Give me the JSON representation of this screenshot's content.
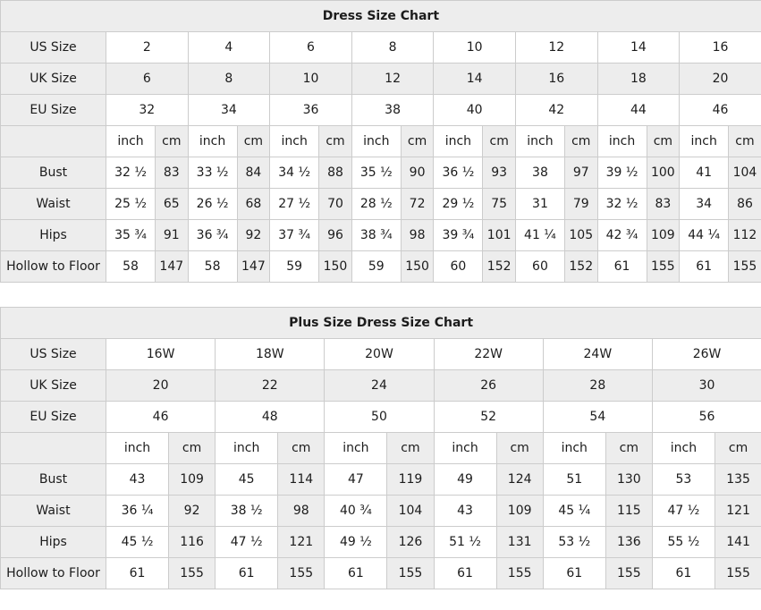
{
  "colors": {
    "shaded_cell": "#ededed",
    "border": "#cccccc",
    "text": "#1c1c1c",
    "background": "#ffffff"
  },
  "chart_data": [
    {
      "type": "table",
      "title": "Dress Size Chart",
      "units": {
        "inch": "inch",
        "cm": "cm"
      },
      "size_rows": [
        {
          "label": "US Size",
          "shaded": false,
          "values": [
            "2",
            "4",
            "6",
            "8",
            "10",
            "12",
            "14",
            "16"
          ]
        },
        {
          "label": "UK Size",
          "shaded": true,
          "values": [
            "6",
            "8",
            "10",
            "12",
            "14",
            "16",
            "18",
            "20"
          ]
        },
        {
          "label": "EU Size",
          "shaded": false,
          "values": [
            "32",
            "34",
            "36",
            "38",
            "40",
            "42",
            "44",
            "46"
          ]
        }
      ],
      "measure_rows": [
        {
          "label": "Bust",
          "pairs": [
            [
              "32 ½",
              "83"
            ],
            [
              "33 ½",
              "84"
            ],
            [
              "34 ½",
              "88"
            ],
            [
              "35 ½",
              "90"
            ],
            [
              "36 ½",
              "93"
            ],
            [
              "38",
              "97"
            ],
            [
              "39 ½",
              "100"
            ],
            [
              "41",
              "104"
            ]
          ]
        },
        {
          "label": "Waist",
          "pairs": [
            [
              "25 ½",
              "65"
            ],
            [
              "26 ½",
              "68"
            ],
            [
              "27 ½",
              "70"
            ],
            [
              "28 ½",
              "72"
            ],
            [
              "29 ½",
              "75"
            ],
            [
              "31",
              "79"
            ],
            [
              "32 ½",
              "83"
            ],
            [
              "34",
              "86"
            ]
          ]
        },
        {
          "label": "Hips",
          "pairs": [
            [
              "35 ¾",
              "91"
            ],
            [
              "36 ¾",
              "92"
            ],
            [
              "37 ¾",
              "96"
            ],
            [
              "38 ¾",
              "98"
            ],
            [
              "39 ¾",
              "101"
            ],
            [
              "41 ¼",
              "105"
            ],
            [
              "42 ¾",
              "109"
            ],
            [
              "44 ¼",
              "112"
            ]
          ]
        },
        {
          "label": "Hollow to Floor",
          "pairs": [
            [
              "58",
              "147"
            ],
            [
              "58",
              "147"
            ],
            [
              "59",
              "150"
            ],
            [
              "59",
              "150"
            ],
            [
              "60",
              "152"
            ],
            [
              "60",
              "152"
            ],
            [
              "61",
              "155"
            ],
            [
              "61",
              "155"
            ]
          ]
        }
      ]
    },
    {
      "type": "table",
      "title": "Plus Size Dress Size Chart",
      "units": {
        "inch": "inch",
        "cm": "cm"
      },
      "size_rows": [
        {
          "label": "US Size",
          "shaded": false,
          "values": [
            "16W",
            "18W",
            "20W",
            "22W",
            "24W",
            "26W"
          ]
        },
        {
          "label": "UK Size",
          "shaded": true,
          "values": [
            "20",
            "22",
            "24",
            "26",
            "28",
            "30"
          ]
        },
        {
          "label": "EU Size",
          "shaded": false,
          "values": [
            "46",
            "48",
            "50",
            "52",
            "54",
            "56"
          ]
        }
      ],
      "measure_rows": [
        {
          "label": "Bust",
          "pairs": [
            [
              "43",
              "109"
            ],
            [
              "45",
              "114"
            ],
            [
              "47",
              "119"
            ],
            [
              "49",
              "124"
            ],
            [
              "51",
              "130"
            ],
            [
              "53",
              "135"
            ]
          ]
        },
        {
          "label": "Waist",
          "pairs": [
            [
              "36 ¼",
              "92"
            ],
            [
              "38 ½",
              "98"
            ],
            [
              "40 ¾",
              "104"
            ],
            [
              "43",
              "109"
            ],
            [
              "45 ¼",
              "115"
            ],
            [
              "47 ½",
              "121"
            ]
          ]
        },
        {
          "label": "Hips",
          "pairs": [
            [
              "45 ½",
              "116"
            ],
            [
              "47 ½",
              "121"
            ],
            [
              "49 ½",
              "126"
            ],
            [
              "51 ½",
              "131"
            ],
            [
              "53 ½",
              "136"
            ],
            [
              "55 ½",
              "141"
            ]
          ]
        },
        {
          "label": "Hollow to Floor",
          "pairs": [
            [
              "61",
              "155"
            ],
            [
              "61",
              "155"
            ],
            [
              "61",
              "155"
            ],
            [
              "61",
              "155"
            ],
            [
              "61",
              "155"
            ],
            [
              "61",
              "155"
            ]
          ]
        }
      ]
    }
  ]
}
